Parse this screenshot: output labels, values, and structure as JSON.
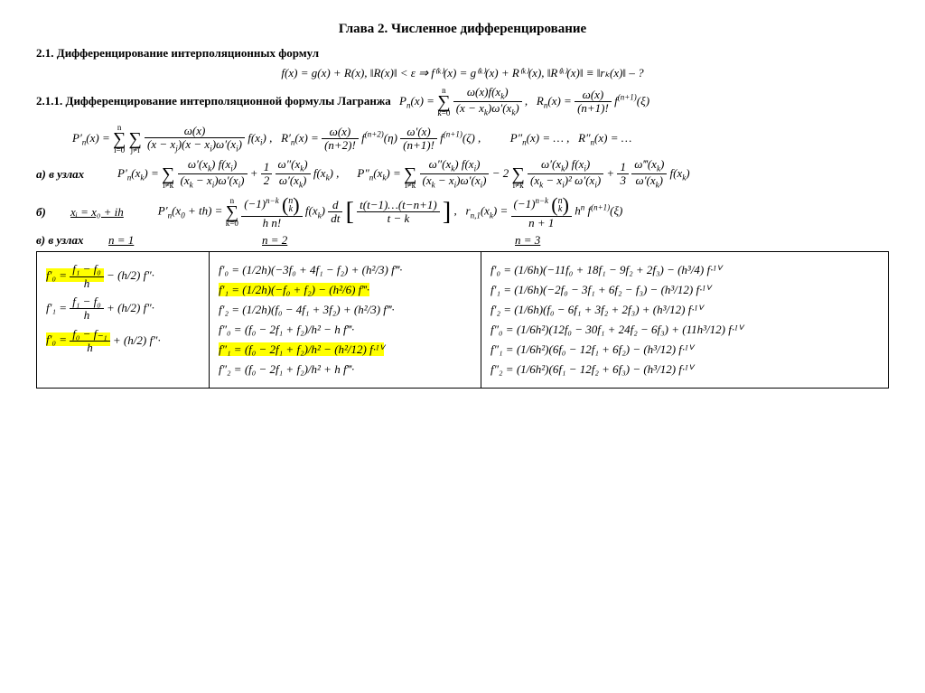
{
  "title": "Глава 2. Численное дифференцирование",
  "section21": "2.1.  Дифференцирование интерполяционных формул",
  "eq_top": "f(x) = g(x) + R(x),  ‖R(x)‖ < ε  ⇒  f⁽ᵏ⁾(x) = g⁽ᵏ⁾(x) + R⁽ᵏ⁾(x),  ‖R⁽ᵏ⁾(x)‖ ≡ ‖rₖ(x)‖ – ?",
  "section211_label": "2.1.1.  Дифференцирование интерполяционной формулы Лагранжа",
  "label_a": "а) в узлах",
  "label_b": "б)",
  "label_v": "в) в узлах",
  "xi_eq": "xᵢ = x₀ + ih",
  "n1": "n = 1",
  "n2": "n = 2",
  "n3": "n = 3",
  "table": {
    "col1": [
      {
        "lhs": "f′₀ =",
        "num": "f₁ − f₀",
        "den": "h",
        "tail": " − (h/2) f″·",
        "hl": true
      },
      {
        "lhs": "f′₁ =",
        "num": "f₁ − f₀",
        "den": "h",
        "tail": " + (h/2) f″·",
        "hl": false
      },
      {
        "lhs": "f′₀ =",
        "num": "f₀ − f₋₁",
        "den": "h",
        "tail": " + (h/2) f″·",
        "hl": true
      }
    ],
    "col2": [
      {
        "text": "f′₀ = (1/2h)(−3f₀ + 4f₁ − f₂) + (h²/3) f‴·",
        "hl": false
      },
      {
        "text": "f′₁ = (1/2h)(−f₀ + f₂) − (h²/6) f‴·",
        "hl": true
      },
      {
        "text": "f′₂ = (1/2h)(f₀ − 4f₁ + 3f₂) + (h²/3) f‴·",
        "hl": false
      },
      {
        "text": "f″₀ = (f₀ − 2f₁ + f₂)/h² − h f‴·",
        "hl": false
      },
      {
        "text": "f″₁ = (f₀ − 2f₁ + f₂)/h² − (h²/12) f·ᴵⱽ",
        "hl": true
      },
      {
        "text": "f″₂ = (f₀ − 2f₁ + f₂)/h² + h f‴·",
        "hl": false
      }
    ],
    "col3": [
      {
        "text": "f′₀ = (1/6h)(−11f₀ + 18f₁ − 9f₂ + 2f₃) − (h³/4) f·ᴵⱽ"
      },
      {
        "text": "f′₁ = (1/6h)(−2f₀ − 3f₁ + 6f₂ − f₃) − (h³/12) f·ᴵⱽ"
      },
      {
        "text": "f′₂ = (1/6h)(f₀ − 6f₁ + 3f₂ + 2f₃) + (h³/12) f·ᴵⱽ"
      },
      {
        "text": "f″₀ = (1/6h²)(12f₀ − 30f₁ + 24f₂ − 6f₃) + (11h³/12) f·ᴵⱽ"
      },
      {
        "text": "f″₁ = (1/6h²)(6f₀ − 12f₁ + 6f₂) − (h³/12) f·ᴵⱽ"
      },
      {
        "text": "f″₂ = (1/6h²)(6f₁ − 12f₂ + 6f₃) − (h³/12) f·ᴵⱽ"
      }
    ]
  }
}
